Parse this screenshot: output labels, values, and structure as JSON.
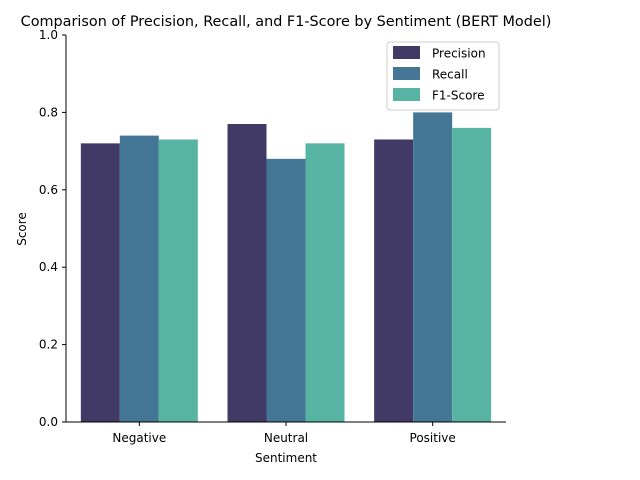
{
  "chart_data": {
    "type": "bar",
    "title": "Comparison of Precision, Recall, and F1-Score by Sentiment (BERT Model)",
    "xlabel": "Sentiment",
    "ylabel": "Score",
    "categories": [
      "Negative",
      "Neutral",
      "Positive"
    ],
    "series": [
      {
        "name": "Precision",
        "color": "#413a66",
        "values": [
          0.72,
          0.77,
          0.73
        ]
      },
      {
        "name": "Recall",
        "color": "#447796",
        "values": [
          0.74,
          0.68,
          0.8
        ]
      },
      {
        "name": "F1-Score",
        "color": "#57b4a2",
        "values": [
          0.73,
          0.72,
          0.76
        ]
      }
    ],
    "ylim": [
      0,
      1.0
    ],
    "yticks": [
      "0.0",
      "0.2",
      "0.4",
      "0.6",
      "0.8",
      "1.0"
    ],
    "grid": false,
    "legend_position": "top-right"
  }
}
